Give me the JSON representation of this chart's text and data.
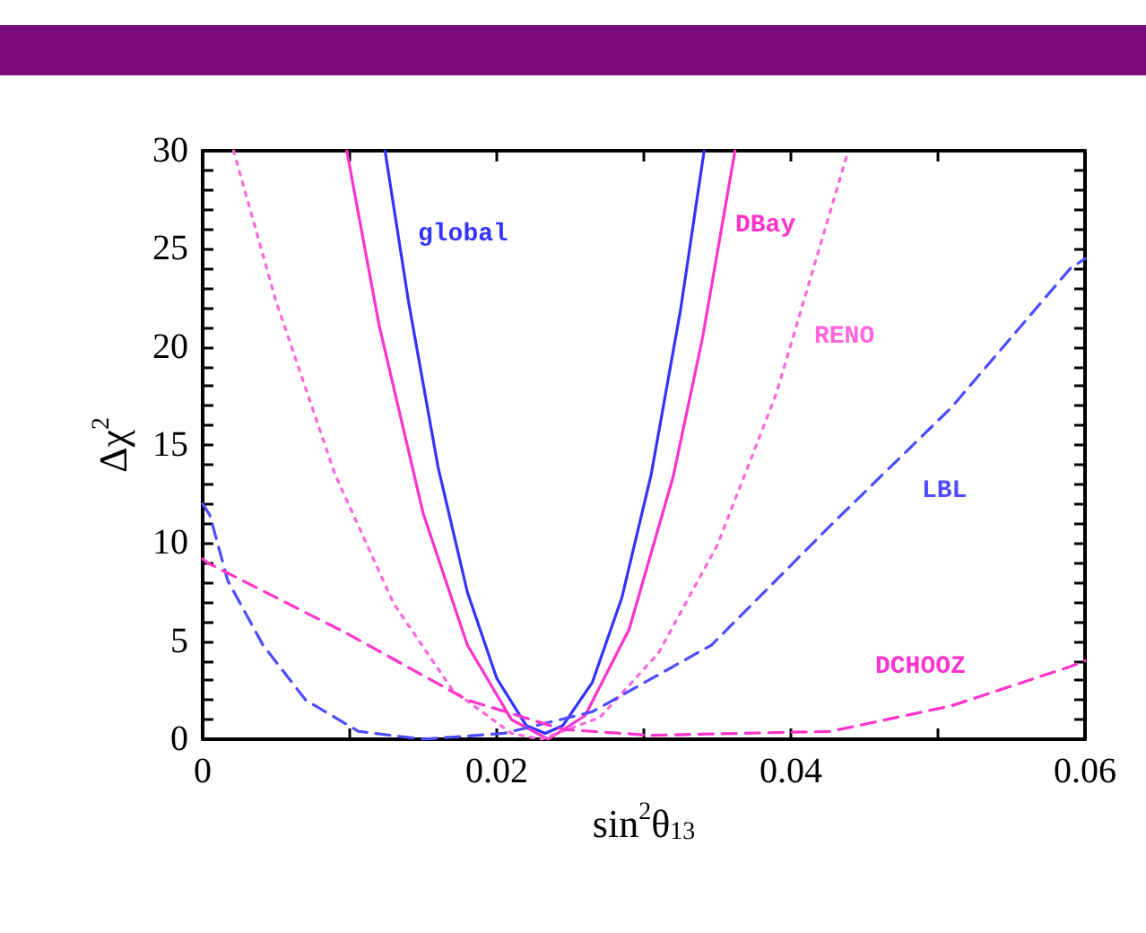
{
  "chart_data": {
    "type": "line",
    "xlabel": "sin$^{2}$θ$_{13}$",
    "ylabel": "Δχ$^{2}$",
    "xlim": [
      0,
      0.06
    ],
    "ylim": [
      0,
      30
    ],
    "xticks": [
      0,
      {
        "value": 0.01,
        "label": null
      },
      0.02,
      {
        "value": 0.03,
        "label": null
      },
      0.04,
      {
        "value": 0.05,
        "label": null
      },
      0.06
    ],
    "yticks": [
      0,
      {
        "value": 1,
        "label": null
      },
      {
        "value": 2,
        "label": null
      },
      {
        "value": 3,
        "label": null
      },
      {
        "value": 4,
        "label": null
      },
      5,
      {
        "value": 6,
        "label": null
      },
      {
        "value": 7,
        "label": null
      },
      {
        "value": 8,
        "label": null
      },
      {
        "value": 9,
        "label": null
      },
      10,
      {
        "value": 11,
        "label": null
      },
      {
        "value": 12,
        "label": null
      },
      {
        "value": 13,
        "label": null
      },
      {
        "value": 14,
        "label": null
      },
      15,
      {
        "value": 16,
        "label": null
      },
      {
        "value": 17,
        "label": null
      },
      {
        "value": 18,
        "label": null
      },
      {
        "value": 19,
        "label": null
      },
      20,
      {
        "value": 21,
        "label": null
      },
      {
        "value": 22,
        "label": null
      },
      {
        "value": 23,
        "label": null
      },
      {
        "value": 24,
        "label": null
      },
      25,
      {
        "value": 26,
        "label": null
      },
      {
        "value": 27,
        "label": null
      },
      {
        "value": 28,
        "label": null
      },
      {
        "value": 29,
        "label": null
      },
      30
    ],
    "grid": false,
    "marker": "none",
    "series": [
      {
        "name": "global",
        "color": "#3333ff",
        "line_style": "solid",
        "x": [
          0.0124,
          0.014,
          0.016,
          0.018,
          0.02,
          0.022,
          0.0233,
          0.0245,
          0.0265,
          0.0285,
          0.0305,
          0.0325,
          0.0341
        ],
        "values": [
          30,
          22.3,
          13.9,
          7.5,
          3.1,
          0.7,
          0.3,
          0.7,
          2.9,
          7.2,
          13.5,
          21.9,
          30
        ]
      },
      {
        "name": "DBay",
        "color": "#ff33cc",
        "line_style": "solid",
        "x": [
          0.0098,
          0.012,
          0.015,
          0.018,
          0.021,
          0.0235,
          0.026,
          0.029,
          0.032,
          0.034,
          0.0362
        ],
        "values": [
          30,
          21.1,
          11.5,
          4.8,
          1.0,
          0,
          1.2,
          5.6,
          13.4,
          20.5,
          30
        ]
      },
      {
        "name": "RENO",
        "color": "#ff66dd",
        "line_style": "dotted",
        "x": [
          0.0021,
          0.005,
          0.009,
          0.013,
          0.017,
          0.021,
          0.023,
          0.027,
          0.031,
          0.035,
          0.039,
          0.0439
        ],
        "values": [
          30,
          22.3,
          13.5,
          6.9,
          2.5,
          0.3,
          0,
          1.1,
          4.4,
          9.9,
          17.6,
          30
        ]
      },
      {
        "name": "LBL",
        "color": "#4d4dff",
        "line_style": "dashed",
        "x": [
          0,
          0.0005,
          0.0017,
          0.0041,
          0.007,
          0.0106,
          0.015,
          0.0205,
          0.0265,
          0.0346,
          0.0427,
          0.0509,
          0.059,
          0.06
        ],
        "values": [
          12,
          11.4,
          8.1,
          4.8,
          2.0,
          0.4,
          0,
          0.3,
          1.4,
          4.8,
          10.9,
          16.9,
          24,
          24.5
        ]
      },
      {
        "name": "DCHOOZ",
        "color": "#ff33cc",
        "line_style": "dashed",
        "x": [
          0,
          0.0003,
          0.0098,
          0.018,
          0.0245,
          0.0305,
          0.0427,
          0.0509,
          0.059,
          0.06
        ],
        "values": [
          9.2,
          9.0,
          5.4,
          2.0,
          0.5,
          0.2,
          0.4,
          1.7,
          3.7,
          4.0
        ]
      }
    ]
  }
}
